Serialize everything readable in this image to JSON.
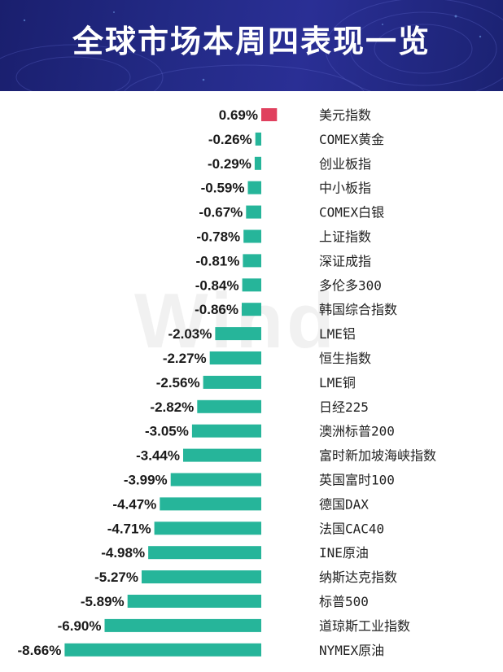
{
  "title": "全球市场本周四表现一览",
  "watermark": "Wind",
  "colors": {
    "positive": "#e0405e",
    "negative": "#26b59a",
    "header_bg": "#232a86"
  },
  "chart_data": {
    "type": "bar",
    "orientation": "horizontal",
    "unit": "%",
    "categories": [
      "美元指数",
      "COMEX黄金",
      "创业板指",
      "中小板指",
      "COMEX白银",
      "上证指数",
      "深证成指",
      "多伦多300",
      "韩国综合指数",
      "LME铝",
      "恒生指数",
      "LME铜",
      "日经225",
      "澳洲标普200",
      "富时新加坡海峡指数",
      "英国富时100",
      "德国DAX",
      "法国CAC40",
      "INE原油",
      "纳斯达克指数",
      "标普500",
      "道琼斯工业指数",
      "NYMEX原油"
    ],
    "values": [
      0.69,
      -0.26,
      -0.29,
      -0.59,
      -0.67,
      -0.78,
      -0.81,
      -0.84,
      -0.86,
      -2.03,
      -2.27,
      -2.56,
      -2.82,
      -3.05,
      -3.44,
      -3.99,
      -4.47,
      -4.71,
      -4.98,
      -5.27,
      -5.89,
      -6.9,
      -8.66
    ],
    "value_labels": [
      "0.69%",
      "-0.26%",
      "-0.29%",
      "-0.59%",
      "-0.67%",
      "-0.78%",
      "-0.81%",
      "-0.84%",
      "-0.86%",
      "-2.03%",
      "-2.27%",
      "-2.56%",
      "-2.82%",
      "-3.05%",
      "-3.44%",
      "-3.99%",
      "-4.47%",
      "-4.71%",
      "-4.98%",
      "-5.27%",
      "-5.89%",
      "-6.90%",
      "-8.66%"
    ]
  }
}
